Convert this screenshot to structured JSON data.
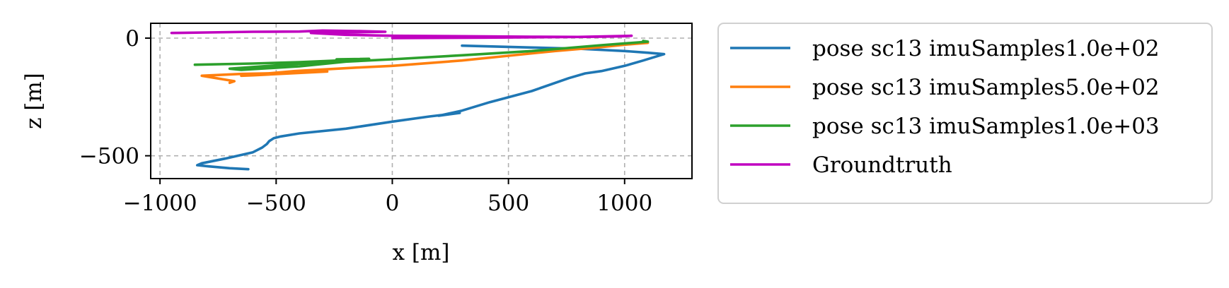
{
  "chart_data": {
    "type": "line",
    "title": "",
    "xlabel": "x [m]",
    "ylabel": "z [m]",
    "xlim": [
      -1040,
      1290
    ],
    "ylim": [
      -597,
      63
    ],
    "xticks": [
      -1000,
      -500,
      0,
      500,
      1000
    ],
    "xtick_labels": [
      "−1000",
      "−500",
      "0",
      "500",
      "1000"
    ],
    "yticks": [
      0,
      -500
    ],
    "ytick_labels": [
      "0",
      "−500"
    ],
    "grid": true,
    "legend_position": "outside-right",
    "series": [
      {
        "name": "pose sc13 imuSamples1.0e+02",
        "color": "#1f77b4",
        "x": [
          -620,
          -700,
          -790,
          -840,
          -820,
          -720,
          -600,
          -560,
          -540,
          -530,
          -510,
          -480,
          -400,
          -200,
          0,
          160,
          290,
          200,
          300,
          420,
          600,
          760,
          830,
          900,
          1000,
          1080,
          1170,
          1100,
          1000,
          800,
          600,
          300
        ],
        "y": [
          -557,
          -553,
          -545,
          -540,
          -532,
          -512,
          -485,
          -465,
          -450,
          -438,
          -425,
          -418,
          -405,
          -385,
          -355,
          -333,
          -318,
          -330,
          -308,
          -272,
          -225,
          -170,
          -150,
          -140,
          -118,
          -95,
          -68,
          -62,
          -55,
          -45,
          -40,
          -32
        ]
      },
      {
        "name": "pose sc13 imuSamples5.0e+02",
        "color": "#ff7f0e",
        "x": [
          -700,
          -680,
          -820,
          -650,
          -550,
          -350,
          -280,
          -400,
          -600,
          -650,
          -420,
          -150,
          0,
          300,
          500,
          700,
          900,
          1000,
          1100
        ],
        "y": [
          -190,
          -183,
          -160,
          -152,
          -150,
          -145,
          -142,
          -148,
          -158,
          -160,
          -140,
          -125,
          -118,
          -95,
          -75,
          -55,
          -38,
          -28,
          -20
        ]
      },
      {
        "name": "pose sc13 imuSamples1.0e+03",
        "color": "#2ca02c",
        "x": [
          -850,
          -600,
          -400,
          -230,
          -240,
          -100,
          -700,
          -650,
          -400,
          -200,
          0,
          300,
          600,
          900,
          1100,
          1080
        ],
        "y": [
          -113,
          -108,
          -102,
          -95,
          -90,
          -88,
          -130,
          -135,
          -120,
          -100,
          -90,
          -73,
          -55,
          -30,
          -15,
          -12
        ]
      },
      {
        "name": "Groundtruth",
        "color": "#c000c0",
        "x": [
          -950,
          -800,
          -600,
          -400,
          -300,
          -150,
          -30,
          -200,
          -350,
          -200,
          0,
          300,
          600,
          800,
          900,
          1000,
          1030,
          800,
          400,
          0
        ],
        "y": [
          22,
          24,
          27,
          28,
          32,
          30,
          27,
          24,
          22,
          14,
          10,
          8,
          6,
          5,
          6,
          8,
          10,
          5,
          2,
          0
        ]
      }
    ]
  }
}
